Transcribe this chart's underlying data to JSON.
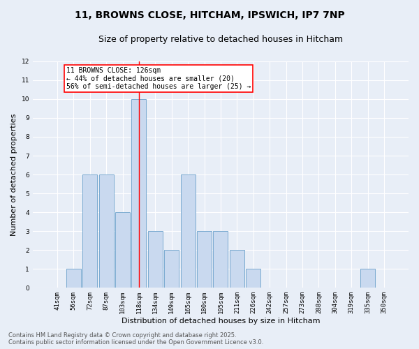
{
  "title_line1": "11, BROWNS CLOSE, HITCHAM, IPSWICH, IP7 7NP",
  "title_line2": "Size of property relative to detached houses in Hitcham",
  "xlabel": "Distribution of detached houses by size in Hitcham",
  "ylabel": "Number of detached properties",
  "categories": [
    "41sqm",
    "56sqm",
    "72sqm",
    "87sqm",
    "103sqm",
    "118sqm",
    "134sqm",
    "149sqm",
    "165sqm",
    "180sqm",
    "195sqm",
    "211sqm",
    "226sqm",
    "242sqm",
    "257sqm",
    "273sqm",
    "288sqm",
    "304sqm",
    "319sqm",
    "335sqm",
    "350sqm"
  ],
  "values": [
    0,
    1,
    6,
    6,
    4,
    10,
    3,
    2,
    6,
    3,
    3,
    2,
    1,
    0,
    0,
    0,
    0,
    0,
    0,
    1,
    0
  ],
  "bar_color": "#c9d9ef",
  "bar_edge_color": "#7aaad0",
  "highlight_bar_index": 5,
  "red_line_x": 5,
  "annotation_text": "11 BROWNS CLOSE: 126sqm\n← 44% of detached houses are smaller (20)\n56% of semi-detached houses are larger (25) →",
  "annotation_box_color": "white",
  "annotation_box_edge": "red",
  "ylim": [
    0,
    12
  ],
  "yticks": [
    0,
    1,
    2,
    3,
    4,
    5,
    6,
    7,
    8,
    9,
    10,
    11,
    12
  ],
  "bg_color": "#e8eef7",
  "plot_bg_color": "#e8eef7",
  "grid_color": "white",
  "footer_line1": "Contains HM Land Registry data © Crown copyright and database right 2025.",
  "footer_line2": "Contains public sector information licensed under the Open Government Licence v3.0.",
  "title_fontsize": 10,
  "subtitle_fontsize": 9,
  "axis_label_fontsize": 8,
  "tick_fontsize": 6.5,
  "annot_fontsize": 7,
  "footer_fontsize": 6
}
